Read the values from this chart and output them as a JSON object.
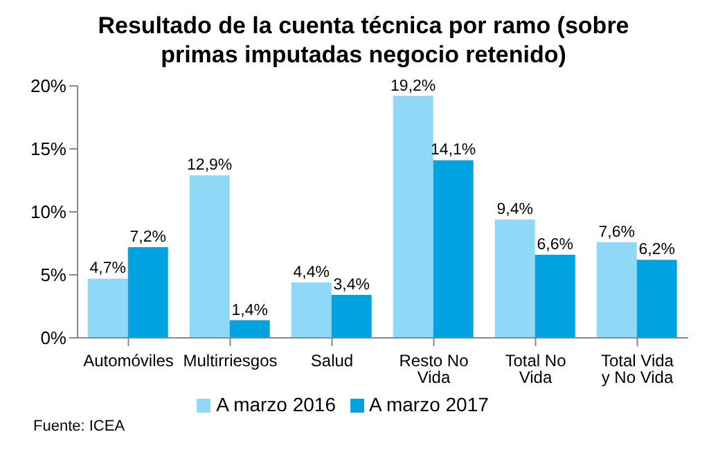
{
  "chart_data": {
    "type": "bar",
    "title": "Resultado de la cuenta técnica por ramo (sobre primas imputadas negocio retenido)",
    "categories": [
      "Automóviles",
      "Multirriesgos",
      "Salud",
      "Resto No Vida",
      "Total No Vida",
      "Total Vida y No Vida"
    ],
    "series": [
      {
        "name": "A marzo 2016",
        "color": "#8fd8f8",
        "values": [
          4.7,
          12.9,
          4.4,
          19.2,
          9.4,
          7.6
        ],
        "value_labels": [
          "4,7%",
          "12,9%",
          "4,4%",
          "19,2%",
          "9,4%",
          "7,6%"
        ]
      },
      {
        "name": "A marzo 2017",
        "color": "#00a3e0",
        "values": [
          7.2,
          1.4,
          3.4,
          14.1,
          6.6,
          6.2
        ],
        "value_labels": [
          "7,2%",
          "1,4%",
          "3,4%",
          "14,1%",
          "6,6%",
          "6,2%"
        ]
      }
    ],
    "ylim": [
      0,
      20
    ],
    "yticks": [
      {
        "value": 0,
        "label": "0%"
      },
      {
        "value": 5,
        "label": "5%"
      },
      {
        "value": 10,
        "label": "10%"
      },
      {
        "value": 15,
        "label": "15%"
      },
      {
        "value": 20,
        "label": "20%"
      }
    ],
    "grid": false,
    "legend": "bottom",
    "annotations": [
      "Fuente: ICEA"
    ]
  }
}
